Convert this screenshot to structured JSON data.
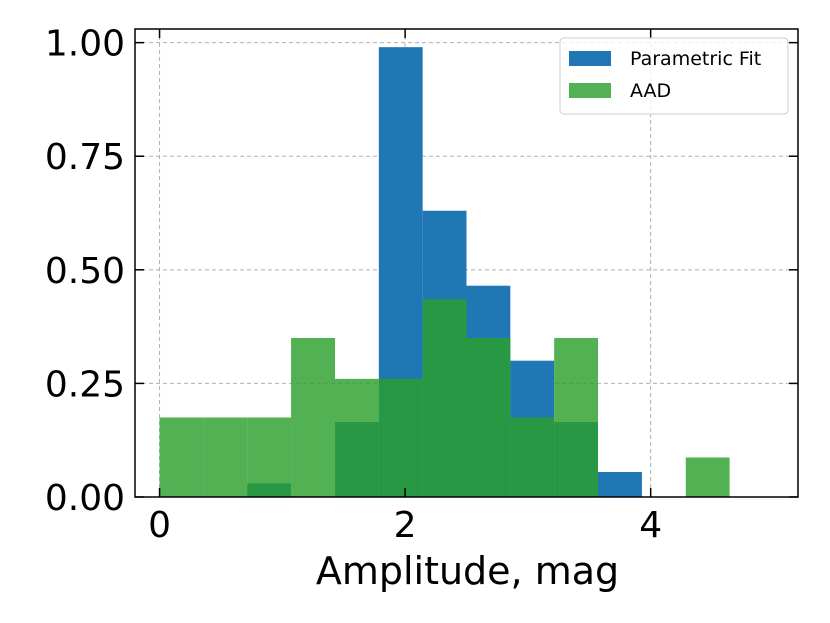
{
  "chart_data": {
    "type": "bar",
    "title": "",
    "xlabel": "Amplitude, mag",
    "ylabel": "",
    "xlim": [
      -0.2,
      5.2
    ],
    "ylim": [
      0.0,
      1.03
    ],
    "xticks": [
      0,
      2,
      4
    ],
    "xtick_labels": [
      "0",
      "2",
      "4"
    ],
    "yticks": [
      0.0,
      0.25,
      0.5,
      0.75,
      1.0
    ],
    "ytick_labels": [
      "0.00",
      "0.25",
      "0.50",
      "0.75",
      "1.00"
    ],
    "grid": true,
    "legend_position": "top-right",
    "bin_edges": [
      0.0,
      0.357,
      0.714,
      1.071,
      1.429,
      1.786,
      2.143,
      2.5,
      2.857,
      3.214,
      3.571,
      3.929,
      4.286,
      4.643,
      5.0
    ],
    "series": [
      {
        "name": "Parametric Fit",
        "color": "#1f77b4",
        "values": [
          0.0,
          0.0,
          0.03,
          0.0,
          0.165,
          0.99,
          0.63,
          0.465,
          0.3,
          0.165,
          0.055,
          0.0,
          0.0,
          0.0
        ]
      },
      {
        "name": "AAD",
        "color": "#2ca02c",
        "values": [
          0.175,
          0.175,
          0.175,
          0.35,
          0.26,
          0.26,
          0.435,
          0.35,
          0.175,
          0.35,
          0.0,
          0.0,
          0.087,
          0.0
        ]
      }
    ]
  }
}
